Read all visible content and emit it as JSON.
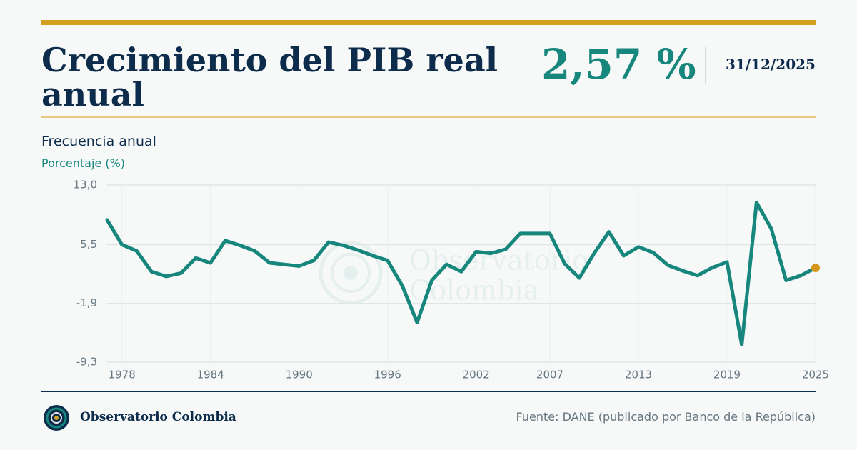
{
  "header": {
    "title": "Crecimiento del PIB real anual",
    "value": "2,57 %",
    "date": "31/12/2025"
  },
  "footer": {
    "brand": "Observatorio Colombia",
    "source": "Fuente: DANE (publicado por Banco de la República)"
  },
  "watermark": [
    "Observatorio",
    "Colombia"
  ],
  "chart_data": {
    "type": "line",
    "subtitle": "Frecuencia anual",
    "y_label": "Porcentaje (%)",
    "x": [
      1977,
      1978,
      1979,
      1980,
      1981,
      1982,
      1983,
      1984,
      1985,
      1986,
      1987,
      1988,
      1989,
      1990,
      1991,
      1992,
      1993,
      1994,
      1995,
      1996,
      1997,
      1998,
      1999,
      2000,
      2001,
      2002,
      2003,
      2004,
      2005,
      2006,
      2007,
      2008,
      2009,
      2010,
      2011,
      2012,
      2013,
      2014,
      2015,
      2016,
      2017,
      2018,
      2019,
      2020,
      2021,
      2022,
      2023,
      2024,
      2025
    ],
    "series": [
      {
        "name": "PIB real",
        "color": "#17877d",
        "values": [
          8.6,
          5.5,
          4.7,
          2.1,
          1.5,
          1.9,
          3.8,
          3.2,
          6.0,
          5.4,
          4.7,
          3.2,
          3.0,
          2.8,
          3.5,
          5.8,
          5.4,
          4.8,
          4.1,
          3.5,
          0.3,
          -4.3,
          1.0,
          3.0,
          2.1,
          4.6,
          4.4,
          4.9,
          6.9,
          6.9,
          6.9,
          3.1,
          1.3,
          4.4,
          7.1,
          4.1,
          5.2,
          4.5,
          2.9,
          2.2,
          1.6,
          2.6,
          3.3,
          -7.1,
          10.8,
          7.5,
          1.0,
          1.6,
          2.57
        ]
      }
    ],
    "highlight_color": "#d4981c",
    "xlim": [
      1977,
      2025
    ],
    "xticks": [
      1978,
      1984,
      1990,
      1996,
      2002,
      2007,
      2013,
      2019,
      2025
    ],
    "ylim": [
      -9.3,
      13.0
    ],
    "yticks": [
      {
        "value": 13.0,
        "label": "13,0"
      },
      {
        "value": 5.5,
        "label": "5,5"
      },
      {
        "value": -1.9,
        "label": "-1,9"
      },
      {
        "value": -9.3,
        "label": "-9,3"
      }
    ],
    "grid": true
  }
}
